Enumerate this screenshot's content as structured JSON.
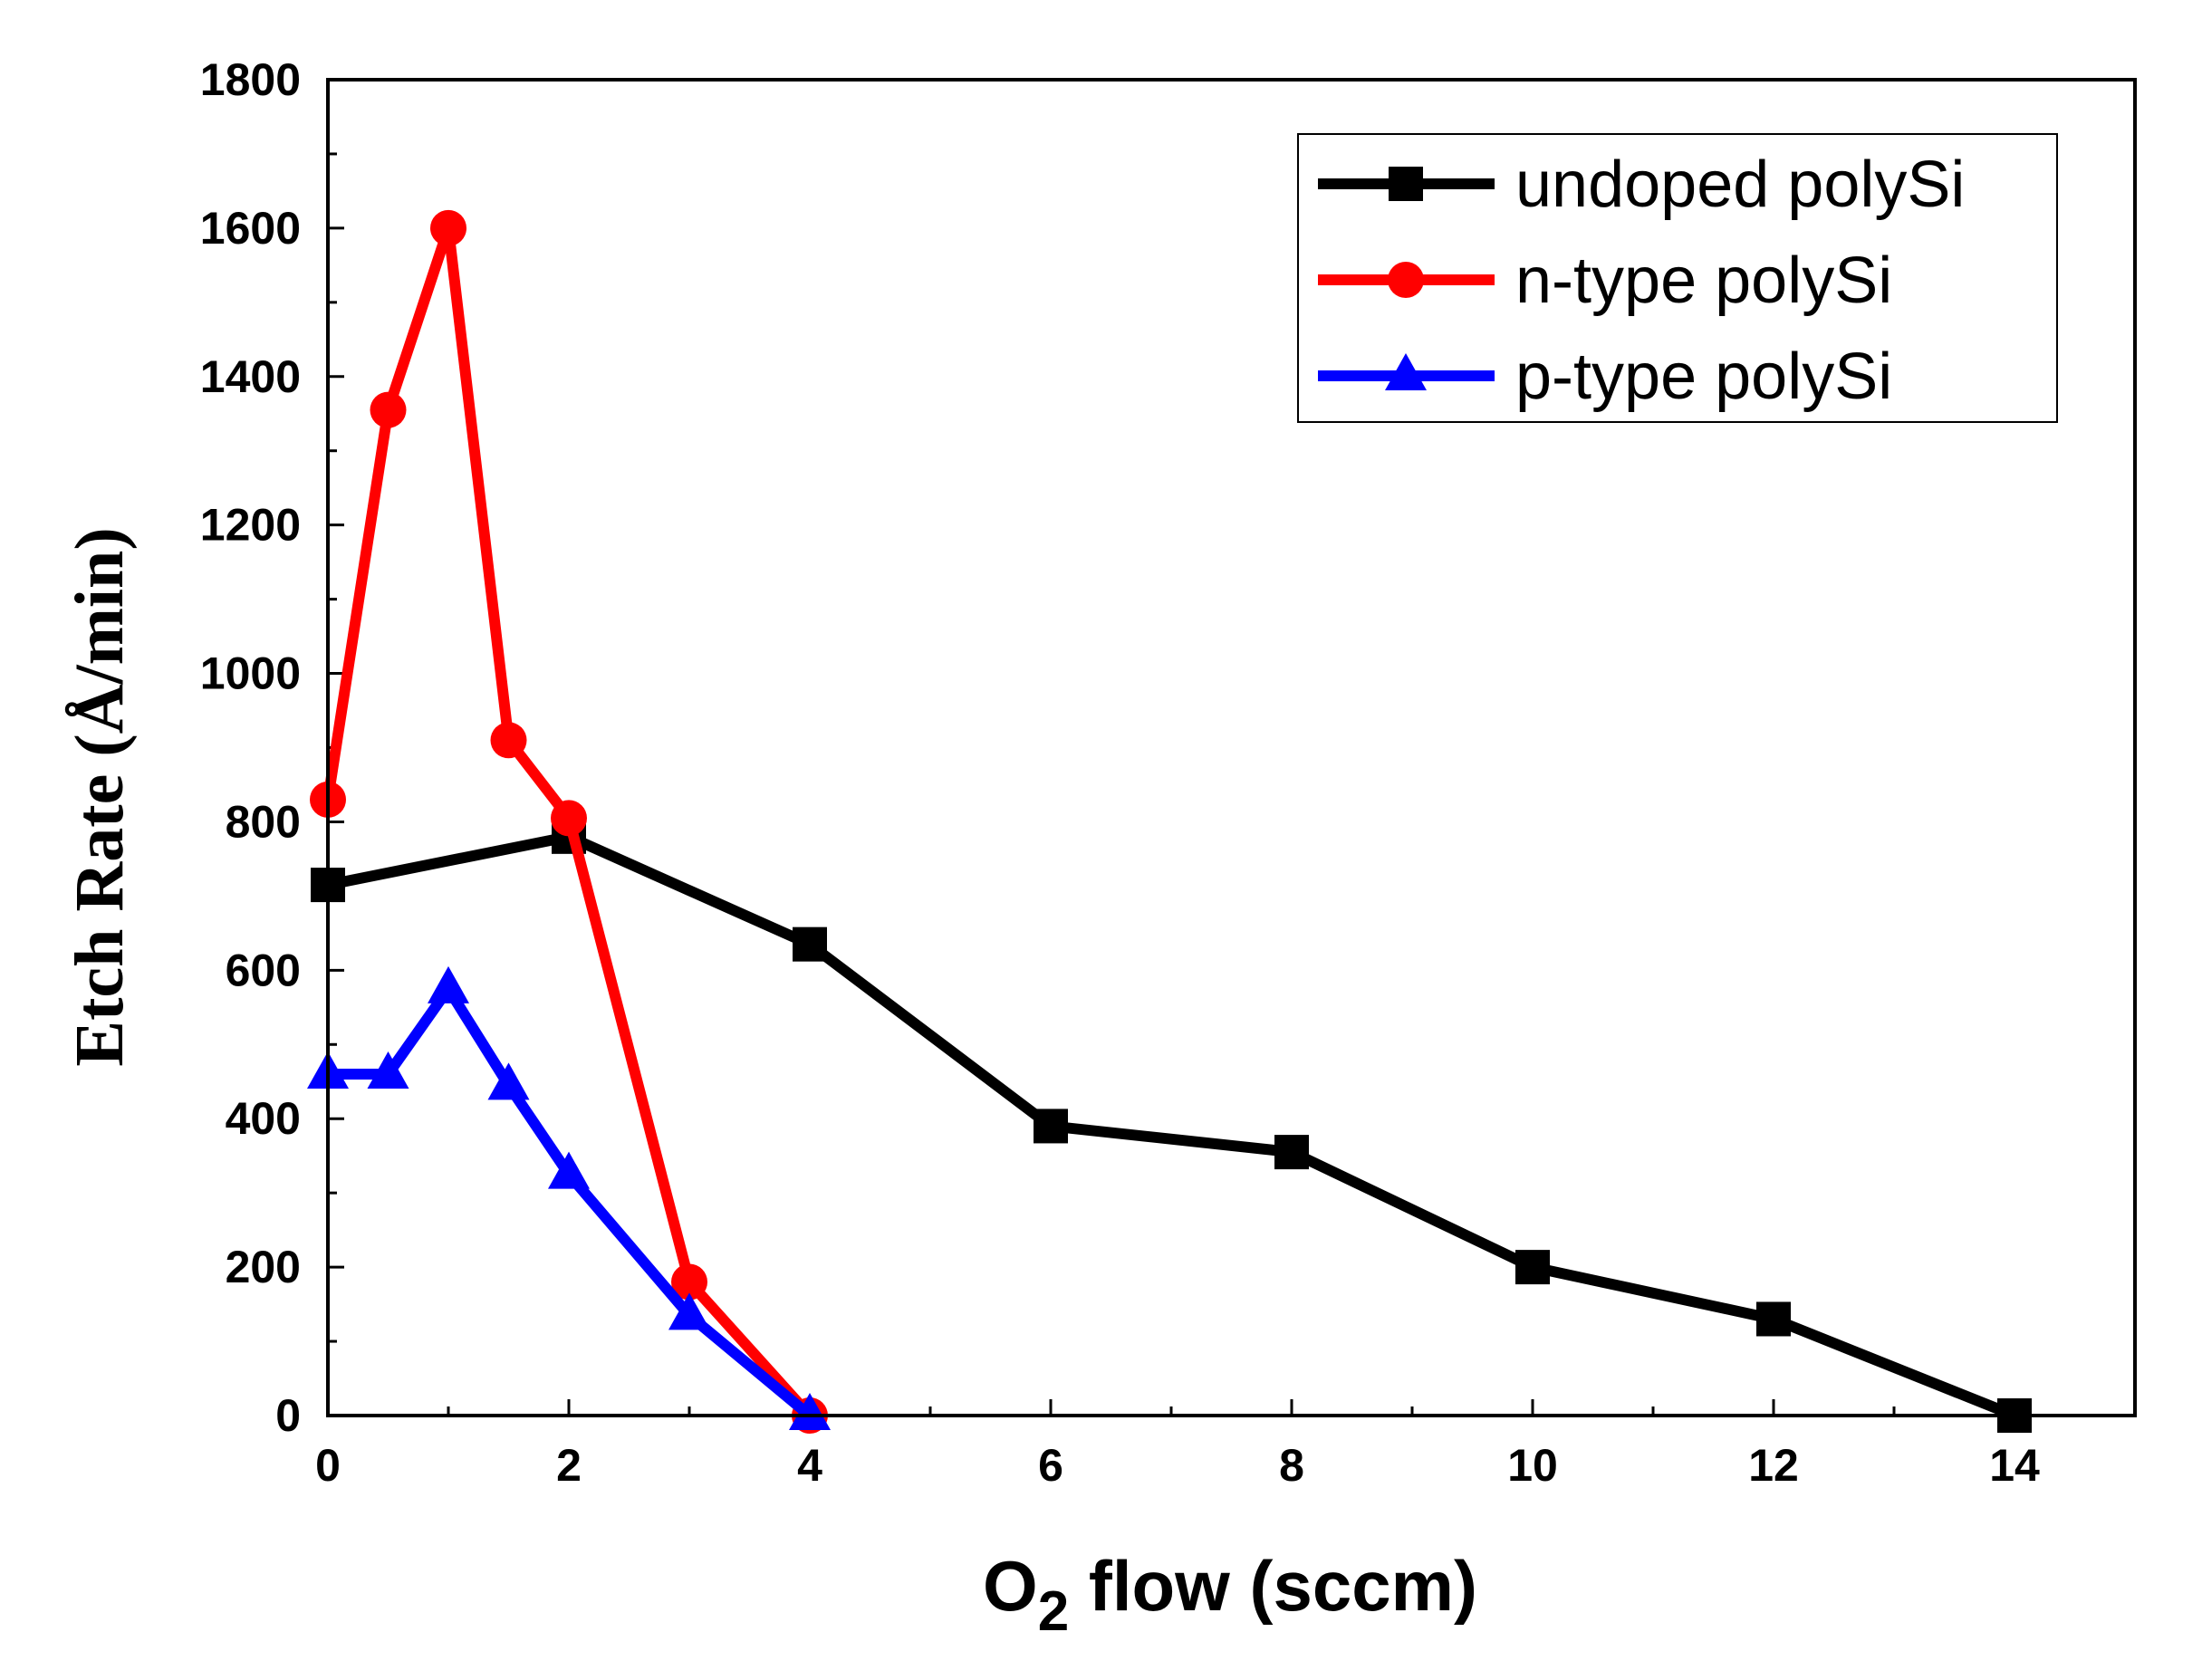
{
  "chart_data": {
    "type": "line",
    "title": "",
    "xlabel": "O2 flow (sccm)",
    "xlabel_main": "O",
    "xlabel_sub": "2",
    "xlabel_rest": " flow (sccm)",
    "ylabel": "Etch Rate (Å/min)",
    "xlim": [
      0,
      15
    ],
    "ylim": [
      0,
      1800
    ],
    "xticks": [
      0,
      2,
      4,
      6,
      8,
      10,
      12,
      14
    ],
    "yticks": [
      0,
      200,
      400,
      600,
      800,
      1000,
      1200,
      1400,
      1600,
      1800
    ],
    "grid": false,
    "legend_position": "top-right",
    "series": [
      {
        "name": "undoped polySi",
        "color": "#000000",
        "marker": "square",
        "x": [
          0,
          2,
          4,
          6,
          8,
          10,
          12,
          14
        ],
        "y": [
          715,
          780,
          635,
          390,
          355,
          200,
          130,
          0
        ]
      },
      {
        "name": "n-type polySi",
        "color": "#ff0000",
        "marker": "circle",
        "x": [
          0,
          0.5,
          1,
          1.5,
          2,
          3,
          4
        ],
        "y": [
          830,
          1355,
          1600,
          910,
          805,
          180,
          0
        ]
      },
      {
        "name": "p-type polySi",
        "color": "#0000ff",
        "marker": "triangle",
        "x": [
          0,
          0.5,
          1,
          1.5,
          2,
          3,
          4
        ],
        "y": [
          460,
          460,
          575,
          445,
          325,
          135,
          0
        ]
      }
    ]
  }
}
